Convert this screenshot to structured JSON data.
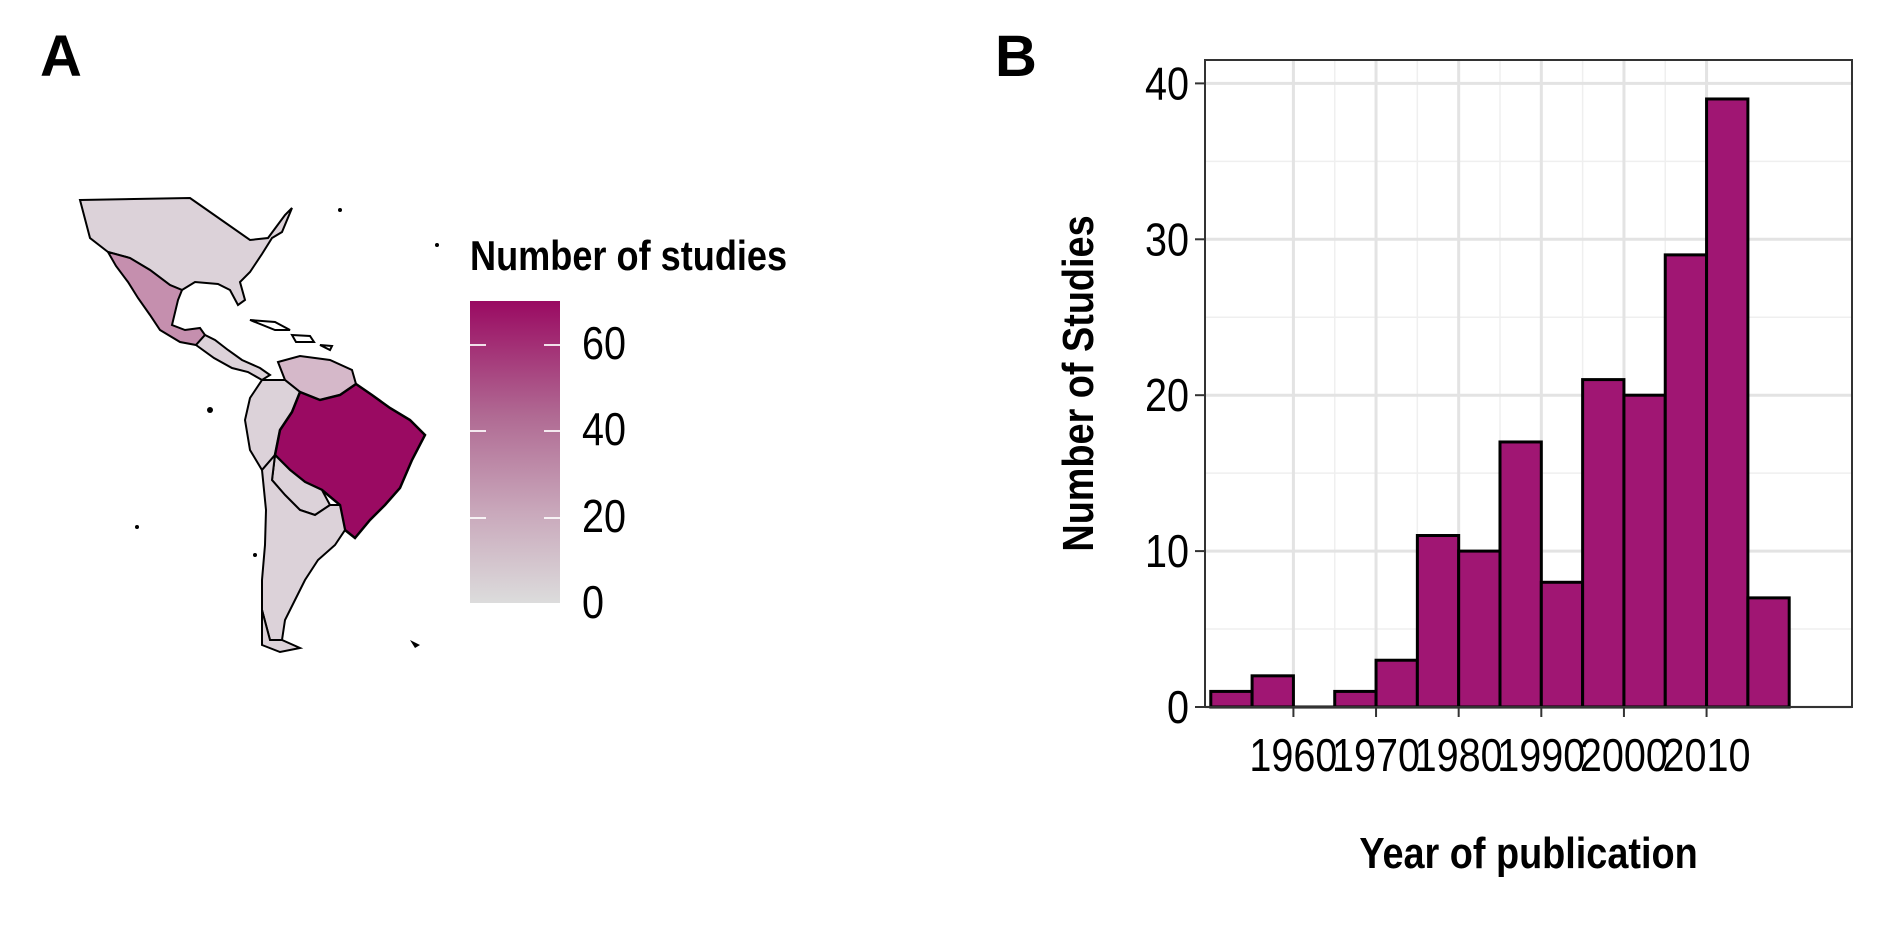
{
  "panels": {
    "a_label": "A",
    "b_label": "B"
  },
  "map": {
    "legend_title": "Number of studies",
    "legend_ticks": [
      "0",
      "20",
      "40",
      "60"
    ],
    "legend_range": [
      0,
      70
    ],
    "color_low": "#dcdcdc",
    "color_high": "#9a0a62"
  },
  "chart_data": {
    "type": "bar",
    "bin_width": 5,
    "bins": [
      {
        "x": 1955,
        "y": 1
      },
      {
        "x": 1960,
        "y": 2
      },
      {
        "x": 1965,
        "y": 0
      },
      {
        "x": 1970,
        "y": 1
      },
      {
        "x": 1975,
        "y": 3
      },
      {
        "x": 1980,
        "y": 11
      },
      {
        "x": 1985,
        "y": 10
      },
      {
        "x": 1990,
        "y": 17
      },
      {
        "x": 1995,
        "y": 8
      },
      {
        "x": 2000,
        "y": 21
      },
      {
        "x": 2005,
        "y": 20
      },
      {
        "x": 2010,
        "y": 29
      },
      {
        "x": 2015,
        "y": 39
      },
      {
        "x": 2020,
        "y": 7
      }
    ],
    "x_ticks": [
      "1960",
      "1970",
      "1980",
      "1990",
      "2000",
      "2010"
    ],
    "y_ticks": [
      "0",
      "10",
      "20",
      "30",
      "40"
    ],
    "xlabel": "Year of publication",
    "ylabel": "Number of Studies",
    "ylim": [
      0,
      41.5
    ],
    "grid": true,
    "bar_color": "#a01673"
  }
}
